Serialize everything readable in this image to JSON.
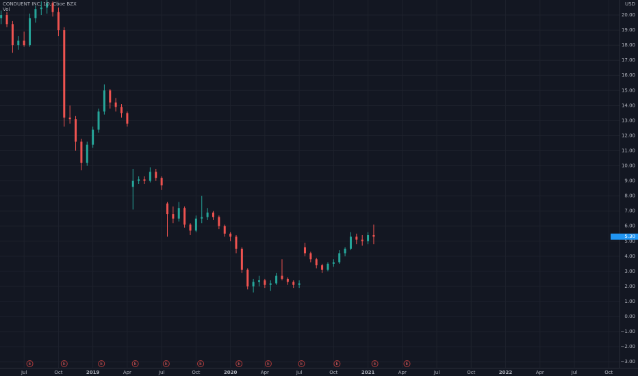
{
  "chart_data": {
    "type": "candlestick",
    "title": "CONDUENT INC, 1D, Cboe BZX",
    "subtitle": "Vol",
    "currency": "USD",
    "last_price_label": "5.30",
    "up_color": "#26a69a",
    "down_color": "#ef5350",
    "grid": true,
    "x": [
      4.0,
      4.5,
      5.0,
      5.5,
      6.0,
      6.5,
      7.0,
      7.5,
      8.0,
      8.5,
      9.0,
      9.5,
      10.0,
      10.5,
      11.0,
      11.5,
      12.0,
      12.5,
      13.0,
      13.5,
      14.0,
      14.5,
      15.0,
      15.5,
      16.0,
      16.5,
      17.0,
      17.5,
      18.0,
      18.5,
      19.0,
      19.5,
      20.0,
      20.5,
      21.0,
      21.5,
      22.0,
      22.5,
      23.0,
      23.5,
      24.0,
      24.5,
      25.0,
      25.5,
      26.0,
      26.5,
      27.0,
      27.5,
      28.0,
      28.5,
      29.0,
      29.5,
      30.0,
      30.5,
      31.0,
      31.5,
      32.0,
      32.5,
      33.0,
      33.5,
      34.0,
      34.5,
      35.0,
      35.5,
      36.0,
      36.5
    ],
    "open": [
      19.8,
      20.0,
      19.4,
      18.0,
      18.3,
      18.0,
      19.8,
      20.4,
      20.5,
      20.8,
      20.2,
      19.0,
      13.2,
      13.1,
      11.6,
      10.2,
      11.4,
      12.4,
      13.6,
      15.0,
      14.2,
      13.9,
      13.5,
      8.6,
      9.0,
      9.1,
      9.0,
      9.6,
      9.2,
      7.5,
      6.8,
      6.5,
      7.2,
      6.1,
      5.7,
      6.5,
      6.6,
      6.9,
      6.6,
      6.0,
      5.5,
      5.3,
      4.5,
      3.1,
      2.0,
      2.3,
      2.4,
      2.1,
      2.2,
      2.7,
      2.5,
      2.3,
      2.1,
      4.6,
      4.2,
      3.8,
      3.4,
      3.1,
      3.5,
      3.6,
      4.2,
      4.5,
      5.3,
      5.1,
      5.0,
      5.4
    ],
    "high": [
      20.3,
      20.2,
      19.6,
      18.6,
      18.9,
      20.1,
      20.6,
      20.9,
      21.0,
      20.9,
      20.5,
      19.2,
      14.0,
      13.3,
      11.8,
      11.6,
      12.6,
      13.8,
      15.4,
      15.1,
      14.5,
      14.1,
      13.6,
      9.8,
      9.3,
      9.3,
      9.9,
      9.8,
      9.3,
      7.6,
      7.3,
      7.6,
      7.3,
      6.2,
      6.7,
      8.0,
      7.2,
      7.0,
      6.7,
      6.1,
      5.6,
      5.4,
      4.6,
      3.2,
      2.5,
      2.7,
      2.5,
      2.4,
      2.9,
      3.8,
      2.6,
      2.4,
      2.4,
      4.9,
      4.3,
      3.9,
      3.5,
      3.6,
      3.8,
      4.4,
      4.6,
      5.6,
      5.5,
      5.4,
      5.6,
      6.1
    ],
    "low": [
      19.4,
      19.2,
      17.5,
      17.7,
      17.9,
      17.9,
      19.5,
      20.0,
      20.1,
      19.9,
      18.6,
      12.6,
      12.8,
      11.0,
      9.7,
      10.0,
      11.2,
      12.2,
      13.4,
      13.8,
      13.6,
      13.2,
      12.6,
      7.1,
      8.8,
      8.8,
      8.9,
      9.0,
      8.4,
      5.3,
      6.2,
      6.3,
      5.9,
      5.4,
      5.6,
      6.2,
      6.4,
      6.4,
      5.8,
      5.3,
      5.0,
      4.2,
      2.9,
      1.8,
      1.6,
      2.0,
      1.9,
      1.7,
      2.1,
      2.4,
      2.1,
      1.9,
      1.9,
      4.0,
      3.6,
      3.2,
      2.9,
      3.0,
      3.3,
      3.5,
      4.0,
      4.4,
      4.8,
      4.7,
      4.8,
      4.8
    ],
    "close": [
      20.0,
      19.4,
      18.0,
      18.3,
      18.0,
      19.8,
      20.4,
      20.5,
      20.8,
      20.2,
      19.0,
      13.2,
      13.1,
      11.6,
      10.2,
      11.4,
      12.4,
      13.6,
      15.0,
      14.2,
      13.9,
      13.5,
      12.8,
      9.0,
      9.1,
      9.0,
      9.6,
      9.2,
      8.7,
      6.8,
      6.5,
      7.2,
      6.1,
      5.7,
      6.5,
      6.6,
      6.9,
      6.6,
      6.0,
      5.5,
      5.3,
      4.5,
      3.1,
      2.0,
      2.3,
      2.4,
      2.1,
      2.2,
      2.7,
      2.5,
      2.3,
      2.1,
      2.2,
      4.2,
      3.8,
      3.4,
      3.1,
      3.5,
      3.6,
      4.2,
      4.5,
      5.3,
      5.1,
      5.0,
      5.4,
      5.3
    ],
    "events": [
      {
        "x": 6.5,
        "label": "E"
      },
      {
        "x": 9.5,
        "label": "E"
      },
      {
        "x": 12.75,
        "label": "E"
      },
      {
        "x": 15.7,
        "label": "E"
      },
      {
        "x": 18.4,
        "label": "E"
      },
      {
        "x": 21.4,
        "label": "E"
      },
      {
        "x": 24.75,
        "label": "E"
      },
      {
        "x": 27.3,
        "label": "E"
      },
      {
        "x": 30.2,
        "label": "E"
      },
      {
        "x": 33.3,
        "label": "E"
      },
      {
        "x": 36.6,
        "label": "E"
      },
      {
        "x": 39.4,
        "label": "E"
      }
    ],
    "xlim": [
      3.9,
      57.94
    ],
    "xticks": [
      {
        "value": 6,
        "label": "Jul"
      },
      {
        "value": 9,
        "label": "Oct"
      },
      {
        "value": 12,
        "label": "2019"
      },
      {
        "value": 15,
        "label": "Apr"
      },
      {
        "value": 18,
        "label": "Jul"
      },
      {
        "value": 21,
        "label": "Oct"
      },
      {
        "value": 24,
        "label": "2020"
      },
      {
        "value": 27,
        "label": "Apr"
      },
      {
        "value": 30,
        "label": "Jul"
      },
      {
        "value": 33,
        "label": "Oct"
      },
      {
        "value": 36,
        "label": "2021"
      },
      {
        "value": 39,
        "label": "Apr"
      },
      {
        "value": 42,
        "label": "Jul"
      },
      {
        "value": 45,
        "label": "Oct"
      },
      {
        "value": 48,
        "label": "2022"
      },
      {
        "value": 51,
        "label": "Apr"
      },
      {
        "value": 54,
        "label": "Jul"
      },
      {
        "value": 57,
        "label": "Oct"
      }
    ],
    "ylim": [
      -3.4,
      21.0
    ],
    "yticks": [
      {
        "value": 20,
        "label": "20.00"
      },
      {
        "value": 19,
        "label": "19.00"
      },
      {
        "value": 18,
        "label": "18.00"
      },
      {
        "value": 17,
        "label": "17.00"
      },
      {
        "value": 16,
        "label": "16.00"
      },
      {
        "value": 15,
        "label": "15.00"
      },
      {
        "value": 14,
        "label": "14.00"
      },
      {
        "value": 13,
        "label": "13.00"
      },
      {
        "value": 12,
        "label": "12.00"
      },
      {
        "value": 11,
        "label": "11.00"
      },
      {
        "value": 10,
        "label": "10.00"
      },
      {
        "value": 9,
        "label": "9.00"
      },
      {
        "value": 8,
        "label": "8.00"
      },
      {
        "value": 7,
        "label": "7.00"
      },
      {
        "value": 6,
        "label": "6.00"
      },
      {
        "value": 5,
        "label": "5.00"
      },
      {
        "value": 4,
        "label": "4.00"
      },
      {
        "value": 3,
        "label": "3.00"
      },
      {
        "value": 2,
        "label": "2.00"
      },
      {
        "value": 1,
        "label": "1.00"
      },
      {
        "value": 0,
        "label": "0.00"
      },
      {
        "value": -1,
        "label": "−1.00"
      },
      {
        "value": -2,
        "label": "−2.00"
      },
      {
        "value": -3,
        "label": "−3.00"
      }
    ]
  }
}
